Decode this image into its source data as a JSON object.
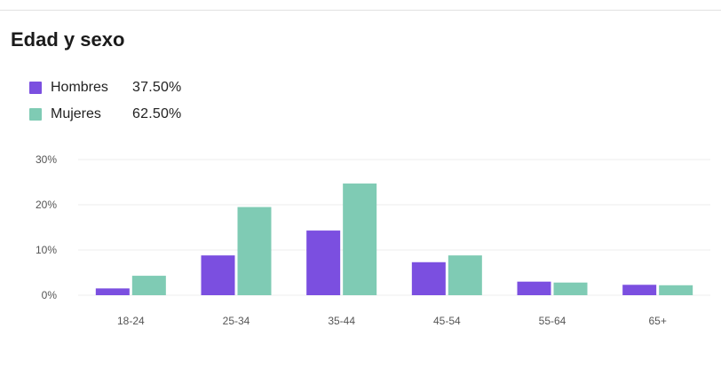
{
  "title": "Edad y sexo",
  "legend": [
    {
      "label": "Hombres",
      "value": "37.50%",
      "color": "#7b4fe0"
    },
    {
      "label": "Mujeres",
      "value": "62.50%",
      "color": "#7fcbb4"
    }
  ],
  "colors": {
    "gridline": "#ececec",
    "tick_text": "#555555"
  },
  "chart_data": {
    "type": "bar",
    "categories": [
      "18-24",
      "25-34",
      "35-44",
      "45-54",
      "55-64",
      "65+"
    ],
    "series": [
      {
        "name": "Hombres",
        "values": [
          1.5,
          8.8,
          14.3,
          7.3,
          3.0,
          2.3
        ]
      },
      {
        "name": "Mujeres",
        "values": [
          4.3,
          19.5,
          24.7,
          8.8,
          2.8,
          2.2
        ]
      }
    ],
    "ylim": [
      0,
      30
    ],
    "yticks": [
      "0%",
      "10%",
      "20%",
      "30%"
    ],
    "ytick_values": [
      0,
      10,
      20,
      30
    ],
    "grid": true,
    "legend_position": "top-left"
  }
}
